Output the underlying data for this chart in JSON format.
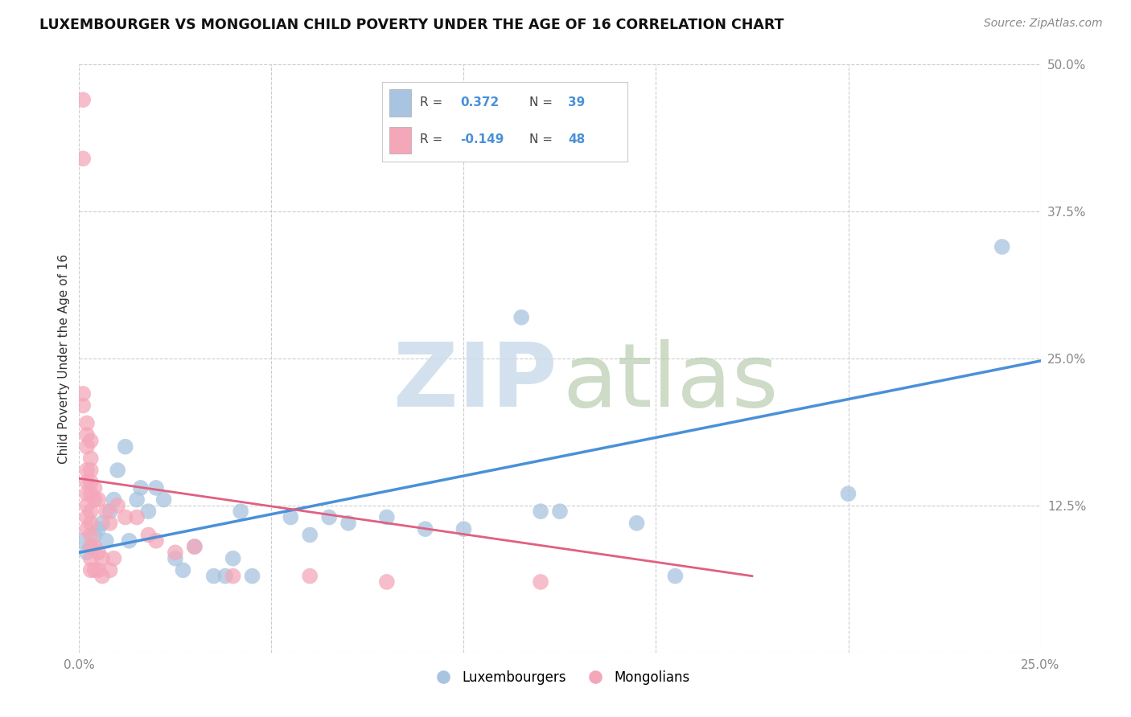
{
  "title": "LUXEMBOURGER VS MONGOLIAN CHILD POVERTY UNDER THE AGE OF 16 CORRELATION CHART",
  "source": "Source: ZipAtlas.com",
  "ylabel": "Child Poverty Under the Age of 16",
  "xlim": [
    0.0,
    0.25
  ],
  "ylim": [
    0.0,
    0.5
  ],
  "yticks": [
    0.0,
    0.125,
    0.25,
    0.375,
    0.5
  ],
  "ytick_labels": [
    "",
    "12.5%",
    "25.0%",
    "37.5%",
    "50.0%"
  ],
  "xticks": [
    0.0,
    0.05,
    0.1,
    0.15,
    0.2,
    0.25
  ],
  "xtick_labels": [
    "0.0%",
    "",
    "",
    "",
    "",
    "25.0%"
  ],
  "grid_color": "#cccccc",
  "background_color": "#ffffff",
  "blue_color": "#a8c4e0",
  "pink_color": "#f4a7b9",
  "blue_line_color": "#4a90d9",
  "pink_line_color": "#e06080",
  "text_color": "#333333",
  "source_color": "#888888",
  "legend_label1": "Luxembourgers",
  "legend_label2": "Mongolians",
  "blue_scatter": [
    [
      0.001,
      0.095
    ],
    [
      0.002,
      0.085
    ],
    [
      0.003,
      0.09
    ],
    [
      0.004,
      0.1
    ],
    [
      0.005,
      0.105
    ],
    [
      0.006,
      0.11
    ],
    [
      0.007,
      0.095
    ],
    [
      0.008,
      0.12
    ],
    [
      0.009,
      0.13
    ],
    [
      0.01,
      0.155
    ],
    [
      0.012,
      0.175
    ],
    [
      0.013,
      0.095
    ],
    [
      0.015,
      0.13
    ],
    [
      0.016,
      0.14
    ],
    [
      0.018,
      0.12
    ],
    [
      0.02,
      0.14
    ],
    [
      0.022,
      0.13
    ],
    [
      0.025,
      0.08
    ],
    [
      0.027,
      0.07
    ],
    [
      0.03,
      0.09
    ],
    [
      0.035,
      0.065
    ],
    [
      0.038,
      0.065
    ],
    [
      0.04,
      0.08
    ],
    [
      0.042,
      0.12
    ],
    [
      0.045,
      0.065
    ],
    [
      0.055,
      0.115
    ],
    [
      0.06,
      0.1
    ],
    [
      0.065,
      0.115
    ],
    [
      0.07,
      0.11
    ],
    [
      0.08,
      0.115
    ],
    [
      0.09,
      0.105
    ],
    [
      0.1,
      0.105
    ],
    [
      0.115,
      0.285
    ],
    [
      0.12,
      0.12
    ],
    [
      0.125,
      0.12
    ],
    [
      0.145,
      0.11
    ],
    [
      0.155,
      0.065
    ],
    [
      0.2,
      0.135
    ],
    [
      0.24,
      0.345
    ]
  ],
  "pink_scatter": [
    [
      0.001,
      0.47
    ],
    [
      0.001,
      0.42
    ],
    [
      0.001,
      0.22
    ],
    [
      0.001,
      0.21
    ],
    [
      0.002,
      0.195
    ],
    [
      0.002,
      0.185
    ],
    [
      0.002,
      0.175
    ],
    [
      0.002,
      0.155
    ],
    [
      0.002,
      0.145
    ],
    [
      0.002,
      0.135
    ],
    [
      0.002,
      0.125
    ],
    [
      0.002,
      0.115
    ],
    [
      0.002,
      0.105
    ],
    [
      0.003,
      0.18
    ],
    [
      0.003,
      0.165
    ],
    [
      0.003,
      0.155
    ],
    [
      0.003,
      0.145
    ],
    [
      0.003,
      0.135
    ],
    [
      0.003,
      0.12
    ],
    [
      0.003,
      0.11
    ],
    [
      0.003,
      0.1
    ],
    [
      0.003,
      0.09
    ],
    [
      0.003,
      0.08
    ],
    [
      0.003,
      0.07
    ],
    [
      0.004,
      0.14
    ],
    [
      0.004,
      0.13
    ],
    [
      0.004,
      0.09
    ],
    [
      0.004,
      0.07
    ],
    [
      0.005,
      0.13
    ],
    [
      0.005,
      0.085
    ],
    [
      0.005,
      0.07
    ],
    [
      0.006,
      0.08
    ],
    [
      0.006,
      0.065
    ],
    [
      0.007,
      0.12
    ],
    [
      0.008,
      0.11
    ],
    [
      0.008,
      0.07
    ],
    [
      0.009,
      0.08
    ],
    [
      0.01,
      0.125
    ],
    [
      0.012,
      0.115
    ],
    [
      0.015,
      0.115
    ],
    [
      0.018,
      0.1
    ],
    [
      0.02,
      0.095
    ],
    [
      0.025,
      0.085
    ],
    [
      0.03,
      0.09
    ],
    [
      0.04,
      0.065
    ],
    [
      0.06,
      0.065
    ],
    [
      0.08,
      0.06
    ],
    [
      0.12,
      0.06
    ]
  ],
  "blue_trendline_x": [
    0.0,
    0.25
  ],
  "blue_trendline_y": [
    0.085,
    0.248
  ],
  "pink_trendline_x": [
    0.0,
    0.175
  ],
  "pink_trendline_y": [
    0.148,
    0.065
  ],
  "watermark_zip_color": "#ccdcec",
  "watermark_atlas_color": "#b8ccb0"
}
